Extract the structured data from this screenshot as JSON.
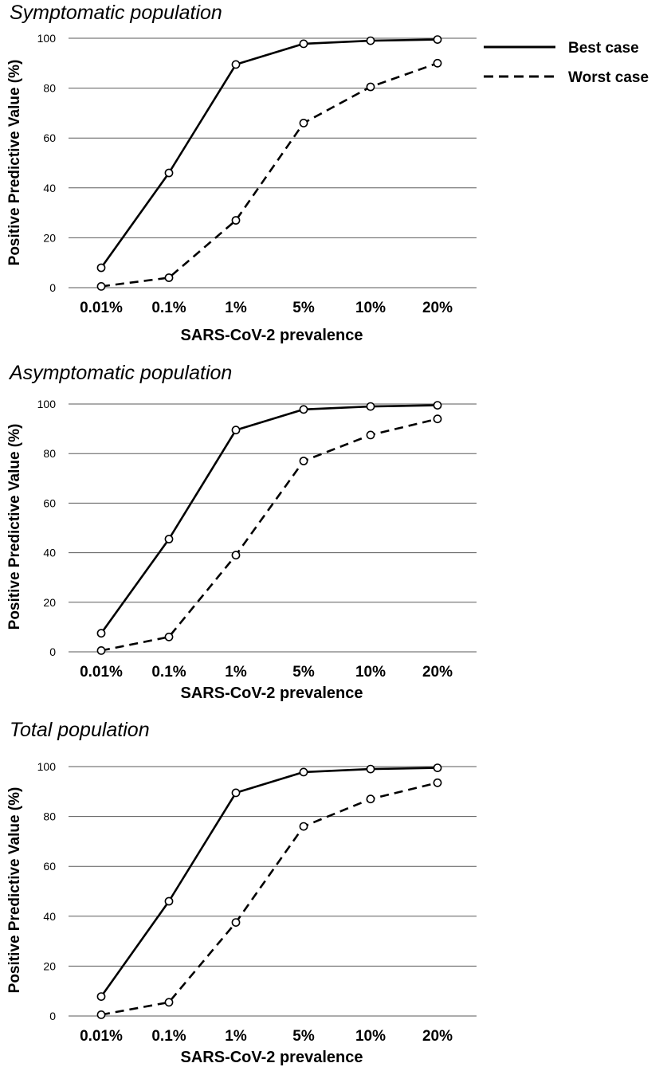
{
  "legend": {
    "entries": [
      {
        "name": "Best case",
        "style": "solid"
      },
      {
        "name": "Worst case",
        "style": "dashed"
      }
    ]
  },
  "colors": {
    "line": "#000000",
    "grid": "#5a5a5a",
    "marker_fill": "#ffffff"
  },
  "chart_data": [
    {
      "type": "line",
      "title": "Symptomatic population",
      "xlabel": "SARS-CoV-2 prevalence",
      "ylabel": "Positive Predictive Value (%)",
      "categories": [
        "0.01%",
        "0.1%",
        "1%",
        "5%",
        "10%",
        "20%"
      ],
      "yticks": [
        "0",
        "20",
        "40",
        "60",
        "80",
        "100"
      ],
      "ylim": [
        0,
        100
      ],
      "grid": true,
      "series": [
        {
          "name": "Best case",
          "style": "solid",
          "values": [
            8,
            46,
            89.5,
            97.8,
            99,
            99.5
          ]
        },
        {
          "name": "Worst case",
          "style": "dashed",
          "values": [
            0.5,
            4,
            27,
            66,
            80.5,
            90
          ]
        }
      ]
    },
    {
      "type": "line",
      "title": "Asymptomatic population",
      "xlabel": "SARS-CoV-2 prevalence",
      "ylabel": "Positive Predictive Value (%)",
      "categories": [
        "0.01%",
        "0.1%",
        "1%",
        "5%",
        "10%",
        "20%"
      ],
      "yticks": [
        "0",
        "20",
        "40",
        "60",
        "80",
        "100"
      ],
      "ylim": [
        0,
        100
      ],
      "grid": true,
      "series": [
        {
          "name": "Best case",
          "style": "solid",
          "values": [
            7.5,
            45.5,
            89.5,
            97.8,
            99,
            99.5
          ]
        },
        {
          "name": "Worst case",
          "style": "dashed",
          "values": [
            0.5,
            6,
            39,
            77,
            87.5,
            94
          ]
        }
      ]
    },
    {
      "type": "line",
      "title": "Total population",
      "xlabel": "SARS-CoV-2 prevalence",
      "ylabel": "Positive Predictive Value (%)",
      "categories": [
        "0.01%",
        "0.1%",
        "1%",
        "5%",
        "10%",
        "20%"
      ],
      "yticks": [
        "0",
        "20",
        "40",
        "60",
        "80",
        "100"
      ],
      "ylim": [
        0,
        100
      ],
      "grid": true,
      "series": [
        {
          "name": "Best case",
          "style": "solid",
          "values": [
            7.8,
            46,
            89.5,
            97.8,
            99,
            99.5
          ]
        },
        {
          "name": "Worst case",
          "style": "dashed",
          "values": [
            0.5,
            5.5,
            37.5,
            76,
            87,
            93.5
          ]
        }
      ]
    }
  ]
}
